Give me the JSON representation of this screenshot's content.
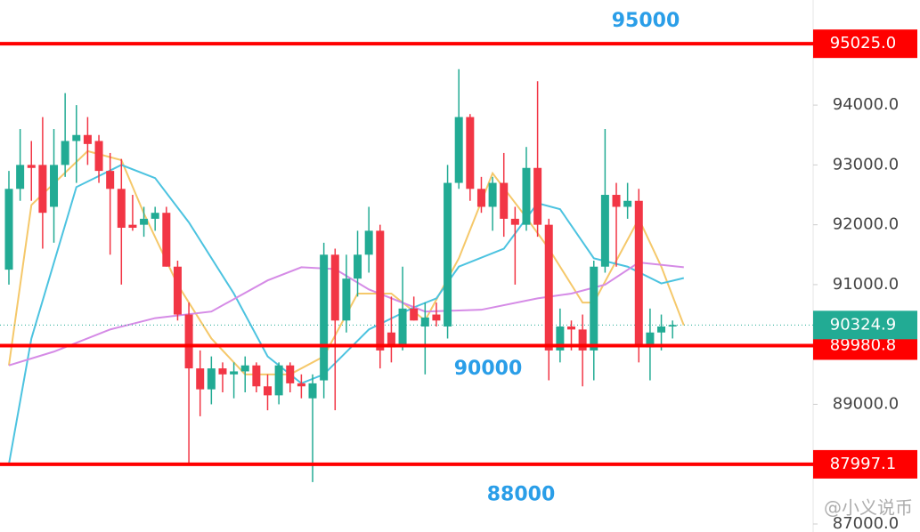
{
  "chart_data": {
    "type": "candlestick",
    "open": [
      91250,
      92600,
      93000,
      93000,
      92300,
      93000,
      93400,
      93500,
      93400,
      92900,
      92600,
      92000,
      92000,
      92100,
      92200,
      91300,
      90500,
      89600,
      89250,
      89600,
      89500,
      89550,
      89650,
      89300,
      89150,
      89650,
      89350,
      89100,
      89400,
      91500,
      90400,
      91100,
      91500,
      91900,
      90200,
      90000,
      90600,
      90300,
      90500,
      90300,
      92700,
      93800,
      92600,
      92300,
      92700,
      92100,
      92000,
      92950,
      92000,
      89900,
      90300,
      90250,
      89900,
      91300,
      92500,
      92300,
      92400,
      89950,
      90200,
      90300
    ],
    "high": [
      92900,
      93600,
      93400,
      93800,
      93600,
      94200,
      94000,
      93800,
      93500,
      93200,
      93100,
      92500,
      92300,
      92300,
      92300,
      91400,
      90700,
      89900,
      89800,
      89700,
      89700,
      89800,
      89700,
      89500,
      89700,
      89700,
      89500,
      89500,
      91700,
      91600,
      91500,
      91900,
      92300,
      92000,
      90800,
      91300,
      90800,
      90700,
      90700,
      93000,
      94600,
      93850,
      92800,
      92800,
      93200,
      92300,
      93300,
      94400,
      92100,
      90600,
      90400,
      90500,
      91400,
      93600,
      92700,
      92700,
      92600,
      90600,
      90500,
      90400
    ],
    "low": [
      91000,
      92400,
      92400,
      91600,
      91700,
      92800,
      92700,
      93000,
      92700,
      91500,
      91000,
      91900,
      91800,
      91900,
      91300,
      90400,
      88000,
      88800,
      89000,
      89200,
      89100,
      89200,
      89200,
      88900,
      89000,
      89200,
      89100,
      87700,
      89100,
      88900,
      90200,
      90800,
      91200,
      89600,
      89700,
      89900,
      90400,
      89500,
      90300,
      90100,
      92600,
      92400,
      92200,
      91900,
      91800,
      91000,
      91900,
      91800,
      89400,
      89700,
      89900,
      89300,
      89400,
      91200,
      91300,
      92100,
      89700,
      89400,
      89900,
      90100
    ],
    "close": [
      92600,
      93000,
      92950,
      92200,
      93000,
      93400,
      93500,
      93350,
      92900,
      92600,
      91950,
      91950,
      92100,
      92200,
      91300,
      90500,
      89600,
      89250,
      89600,
      89500,
      89550,
      89650,
      89300,
      89150,
      89650,
      89350,
      89300,
      89350,
      91500,
      90400,
      91100,
      91500,
      91900,
      89900,
      89950,
      90600,
      90400,
      90450,
      90400,
      92700,
      93800,
      92600,
      92300,
      92700,
      92100,
      92000,
      92950,
      92000,
      89900,
      90300,
      90250,
      89900,
      91300,
      92500,
      92300,
      92400,
      90000,
      90200,
      90300,
      90324.9
    ],
    "up_color": "#22ab94",
    "down_color": "#f23645",
    "moving_averages": [
      {
        "color": "#f5c86a",
        "x": [
          0,
          2,
          7,
          10,
          12,
          15,
          18,
          21,
          25,
          28,
          31,
          34,
          37,
          40,
          43,
          46,
          48,
          51,
          52,
          56,
          58,
          60
        ],
        "values": [
          89650,
          92330,
          93230,
          93080,
          92190,
          91000,
          90100,
          89500,
          89500,
          89800,
          90850,
          90850,
          90400,
          91440,
          92860,
          92120,
          91600,
          90700,
          90700,
          92100,
          91300,
          90320
        ]
      },
      {
        "color": "#4cc3e0",
        "x": [
          0,
          2,
          6,
          10,
          13,
          16,
          20,
          23,
          26,
          28,
          32,
          36,
          38,
          40,
          44,
          47,
          49,
          52,
          55,
          58,
          60
        ],
        "values": [
          88000,
          90100,
          92630,
          93000,
          92780,
          92040,
          90850,
          89800,
          89350,
          89500,
          90250,
          90620,
          90770,
          91300,
          91600,
          92360,
          92260,
          91440,
          91300,
          91020,
          91110
        ]
      },
      {
        "color": "#d58be6",
        "x": [
          0,
          4,
          9,
          13,
          18,
          23,
          26,
          29,
          32,
          37,
          42,
          47,
          50,
          53,
          56,
          60
        ],
        "values": [
          89650,
          89880,
          90250,
          90440,
          90550,
          91070,
          91290,
          91260,
          90920,
          90550,
          90580,
          90770,
          90850,
          91000,
          91370,
          91290
        ]
      }
    ],
    "ylim": [
      86866,
      95756
    ],
    "yticks": [
      {
        "value": 87000,
        "label": "87000.0"
      },
      {
        "value": 89000,
        "label": "89000.0"
      },
      {
        "value": 91000,
        "label": "91000.0"
      },
      {
        "value": 92000,
        "label": "92000.0"
      },
      {
        "value": 93000,
        "label": "93000.0"
      },
      {
        "value": 94000,
        "label": "94000.0"
      }
    ],
    "price_lines": [
      {
        "value": {
          "value": 95025,
          "label": "95025.0"
        },
        "color": "#ff0000"
      },
      {
        "value": 89980.8,
        "color": "#ff0000"
      },
      {
        "value": 87997.1,
        "color": "#ff0000"
      }
    ],
    "last_price": {
      "value": 90324.9,
      "color": "#22ab94"
    },
    "annotations": [
      {
        "text": "95000",
        "value": 95000
      },
      {
        "text": "90000",
        "value": 90000
      },
      {
        "text": "88000",
        "value": 88000
      }
    ],
    "watermark": "@小义说币"
  }
}
